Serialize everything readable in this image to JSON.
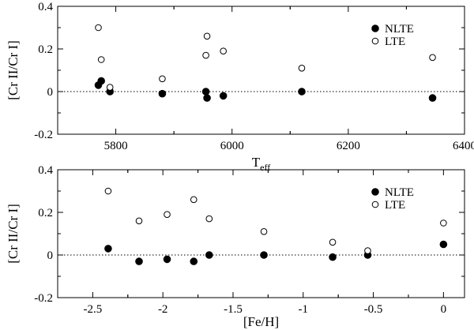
{
  "chart_data": [
    {
      "type": "scatter",
      "xlabel": "T",
      "xlabel_sub": "eff",
      "ylabel": "[Cr II/Cr I]",
      "xlim": [
        5700,
        6400
      ],
      "ylim": [
        -0.2,
        0.4
      ],
      "xticks": [
        5800,
        6000,
        6200,
        6400
      ],
      "xtick_labels": [
        "5800",
        "6000",
        "6200",
        "6400"
      ],
      "yticks": [
        -0.2,
        0,
        0.2,
        0.4
      ],
      "ytick_labels": [
        "-0.2",
        "0",
        "0.2",
        "0.4"
      ],
      "reference_line": 0,
      "legend_position": "top-right",
      "grid": false,
      "series": [
        {
          "name": "NLTE",
          "marker": "filled-circle",
          "x": [
            5770,
            5775,
            5790,
            5880,
            5955,
            5957,
            5985,
            6120,
            6345
          ],
          "y": [
            0.03,
            0.05,
            0.0,
            -0.01,
            0.0,
            -0.03,
            -0.02,
            0.0,
            -0.03
          ]
        },
        {
          "name": "LTE",
          "marker": "open-circle",
          "x": [
            5770,
            5775,
            5790,
            5880,
            5955,
            5957,
            5985,
            6120,
            6345
          ],
          "y": [
            0.3,
            0.15,
            0.02,
            0.06,
            0.17,
            0.26,
            0.19,
            0.11,
            0.16
          ]
        }
      ]
    },
    {
      "type": "scatter",
      "xlabel": "[Fe/H]",
      "ylabel": "[Cr II/Cr I]",
      "xlim": [
        -2.75,
        0.15
      ],
      "ylim": [
        -0.2,
        0.4
      ],
      "xticks": [
        -2.5,
        -2,
        -1.5,
        -1,
        -0.5,
        0
      ],
      "xtick_labels": [
        "-2.5",
        "-2",
        "-1.5",
        "-1",
        "-0.5",
        "0"
      ],
      "yticks": [
        -0.2,
        0,
        0.2,
        0.4
      ],
      "ytick_labels": [
        "-0.2",
        "0",
        "0.2",
        "0.4"
      ],
      "reference_line": 0,
      "legend_position": "top-right",
      "grid": false,
      "series": [
        {
          "name": "NLTE",
          "marker": "filled-circle",
          "x": [
            -2.39,
            -2.17,
            -1.97,
            -1.78,
            -1.67,
            -1.28,
            -0.79,
            -0.54,
            0.0
          ],
          "y": [
            0.03,
            -0.03,
            -0.02,
            -0.03,
            0.0,
            0.0,
            -0.01,
            0.0,
            0.05
          ]
        },
        {
          "name": "LTE",
          "marker": "open-circle",
          "x": [
            -2.39,
            -2.17,
            -1.97,
            -1.78,
            -1.67,
            -1.28,
            -0.79,
            -0.54,
            0.0
          ],
          "y": [
            0.3,
            0.16,
            0.19,
            0.26,
            0.17,
            0.11,
            0.06,
            0.02,
            0.15
          ]
        }
      ]
    }
  ]
}
